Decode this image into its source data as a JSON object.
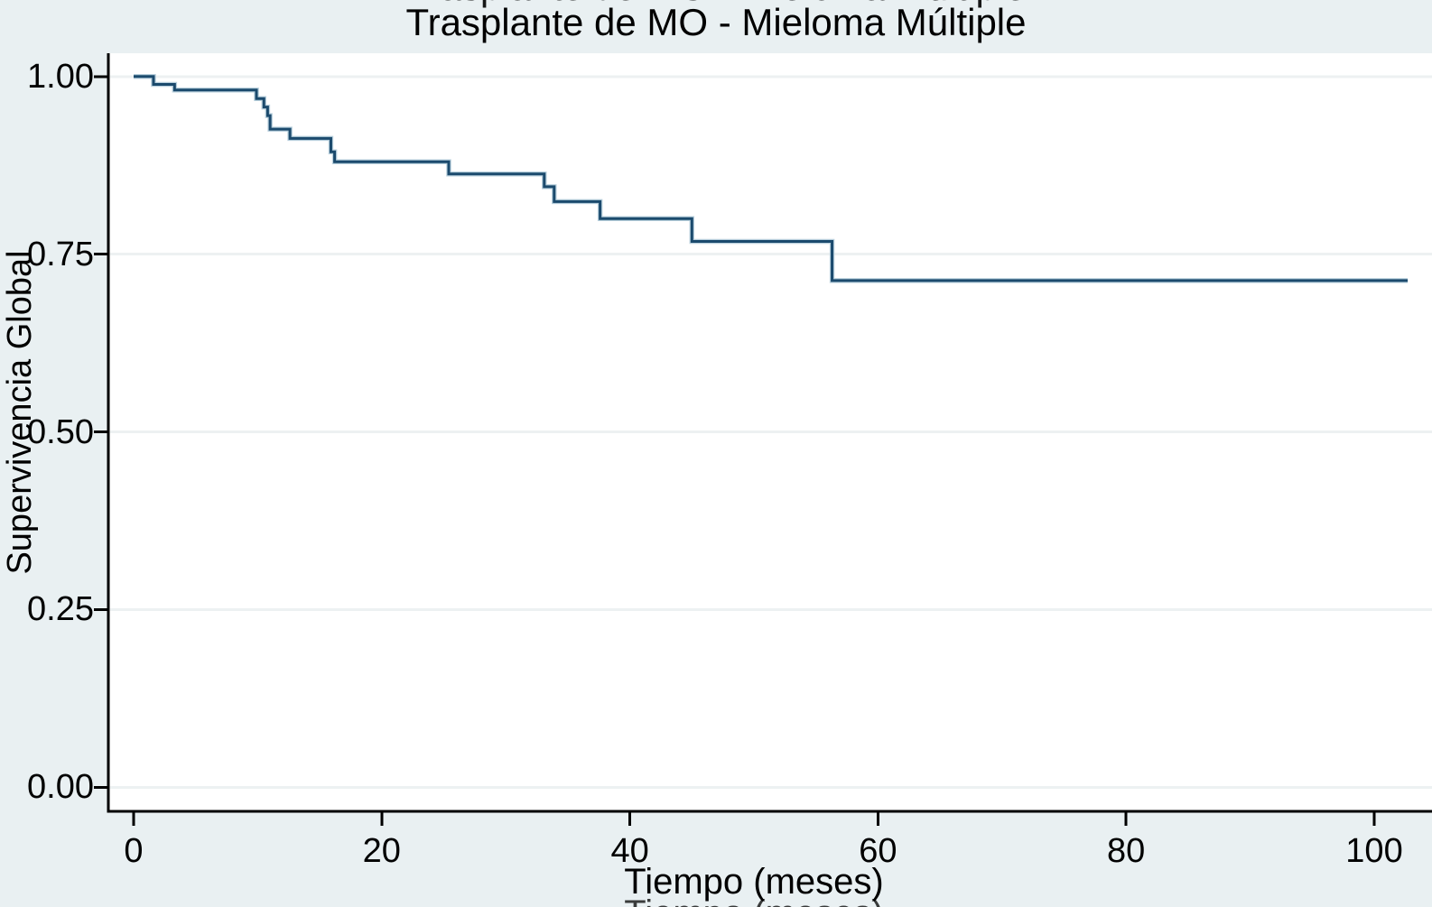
{
  "figure": {
    "title": "Trasplante de MO - Mieloma Múltiple",
    "cropped_text_top": "Trasplante de MO - Mieloma Múltiple",
    "cropped_text_bottom": "Tiempo (meses)"
  },
  "colors": {
    "background": "#e9f0f2",
    "plot_background": "#ffffff",
    "gridline": "#edf1f2",
    "axis": "#000000",
    "text": "#000000",
    "line": "#1b4a6d",
    "line_halo": "#b9d0dd"
  },
  "chart_data": {
    "type": "line",
    "variant": "kaplan_meier_step",
    "title": "Trasplante de MO - Mieloma Múltiple",
    "xlabel": "Tiempo (meses)",
    "ylabel": "Supervivencia Global",
    "xlim": [
      0,
      104.6
    ],
    "ylim": [
      0.0,
      1.0
    ],
    "x_ticks": [
      0,
      20,
      40,
      60,
      80,
      100
    ],
    "y_ticks": [
      "1.00",
      "0.75",
      "0.50",
      "0.25",
      "0.00"
    ],
    "grid": true,
    "legend": false,
    "line_color": "#1b4a6d",
    "steps": [
      {
        "t": 0,
        "s": 1.0
      },
      {
        "t": 1.6,
        "s": 0.989
      },
      {
        "t": 3.3,
        "s": 0.981
      },
      {
        "t": 9.9,
        "s": 0.969
      },
      {
        "t": 10.5,
        "s": 0.957
      },
      {
        "t": 10.8,
        "s": 0.945
      },
      {
        "t": 11.0,
        "s": 0.926
      },
      {
        "t": 12.6,
        "s": 0.913
      },
      {
        "t": 15.9,
        "s": 0.894
      },
      {
        "t": 16.2,
        "s": 0.88
      },
      {
        "t": 25.4,
        "s": 0.863
      },
      {
        "t": 33.1,
        "s": 0.845
      },
      {
        "t": 33.9,
        "s": 0.824
      },
      {
        "t": 37.6,
        "s": 0.8
      },
      {
        "t": 45.0,
        "s": 0.768
      },
      {
        "t": 56.3,
        "s": 0.713
      }
    ],
    "end_time": 102.7
  }
}
